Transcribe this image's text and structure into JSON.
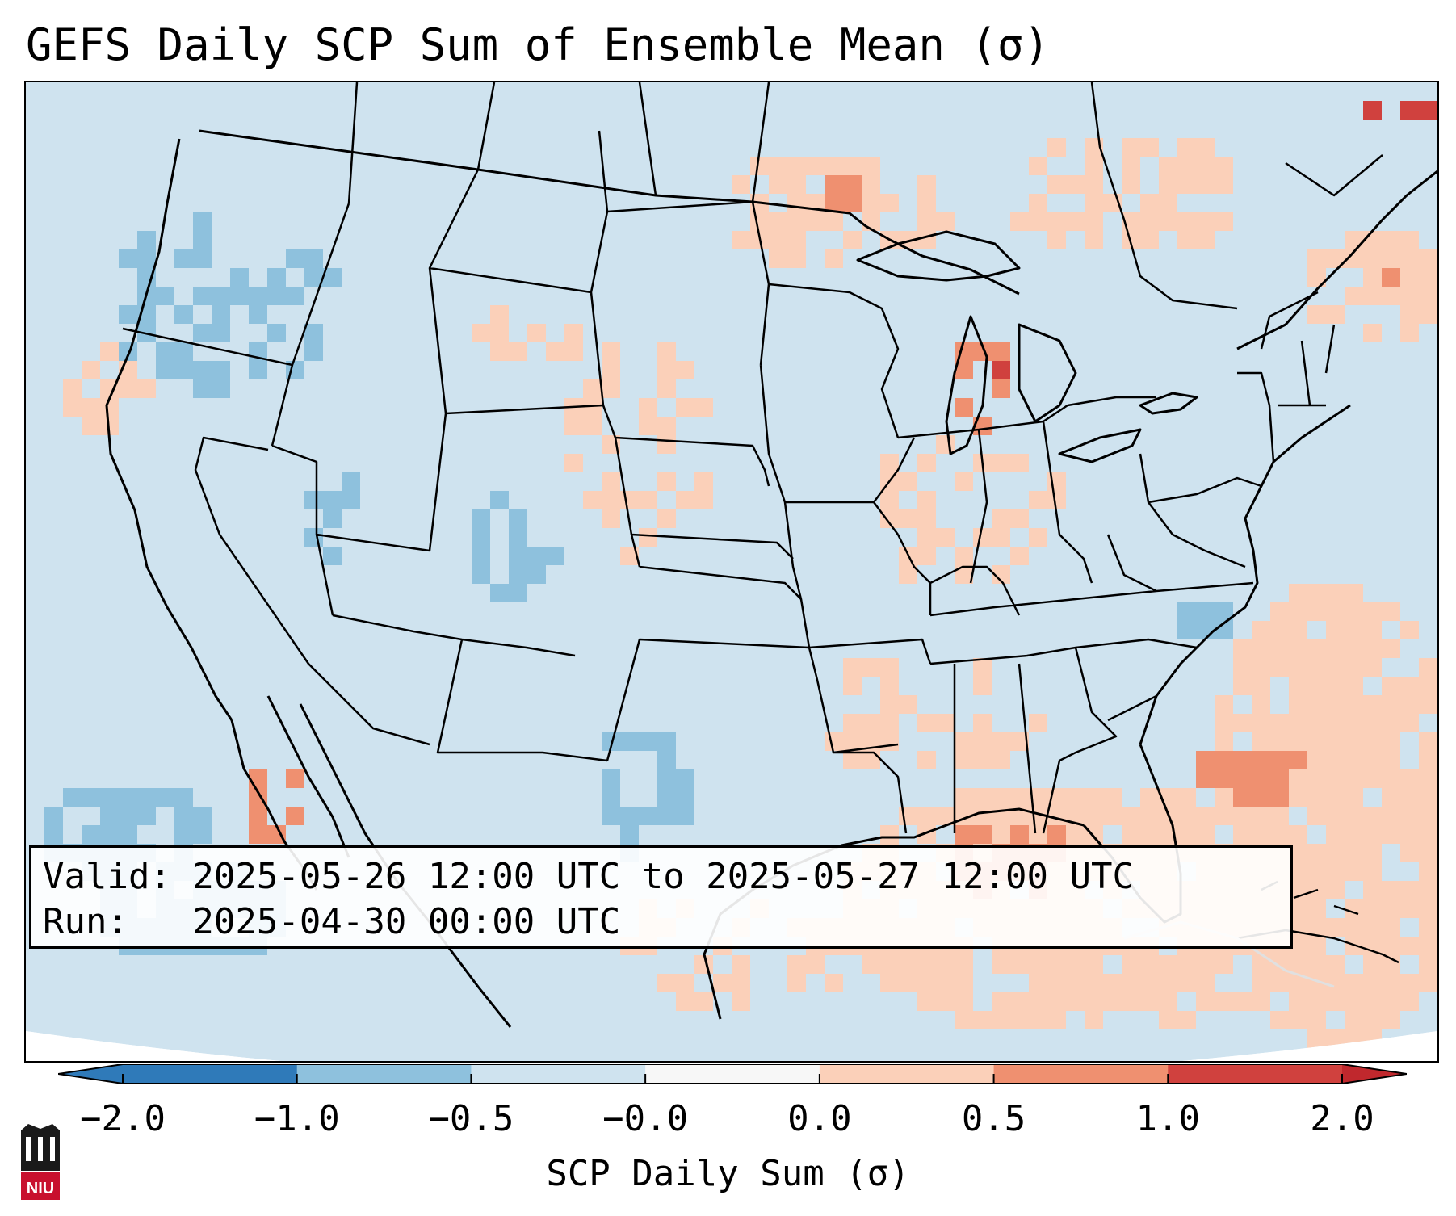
{
  "title": "GEFS Daily SCP Sum of Ensemble Mean (σ)",
  "info": {
    "valid_line": "Valid: 2025-05-26 12:00 UTC to 2025-05-27 12:00 UTC",
    "run_line": "Run:   2025-04-30 00:00 UTC"
  },
  "colorbar": {
    "label": "SCP Daily Sum (σ)",
    "ticks": [
      "−2.0",
      "−1.0",
      "−0.5",
      "−0.0",
      "0.0",
      "0.5",
      "1.0",
      "2.0"
    ],
    "colors": [
      "#2f7ab9",
      "#8ec1dd",
      "#cfe3ef",
      "#f7f7f7",
      "#fbd0b9",
      "#ef9070",
      "#d0413e"
    ],
    "under_color": "#2f7ab9",
    "over_color": "#c0282d"
  },
  "map": {
    "background_color": "#cfe3ef",
    "border_color": "#000000"
  },
  "logo": {
    "text": "NIU",
    "color": "#c8102e"
  }
}
